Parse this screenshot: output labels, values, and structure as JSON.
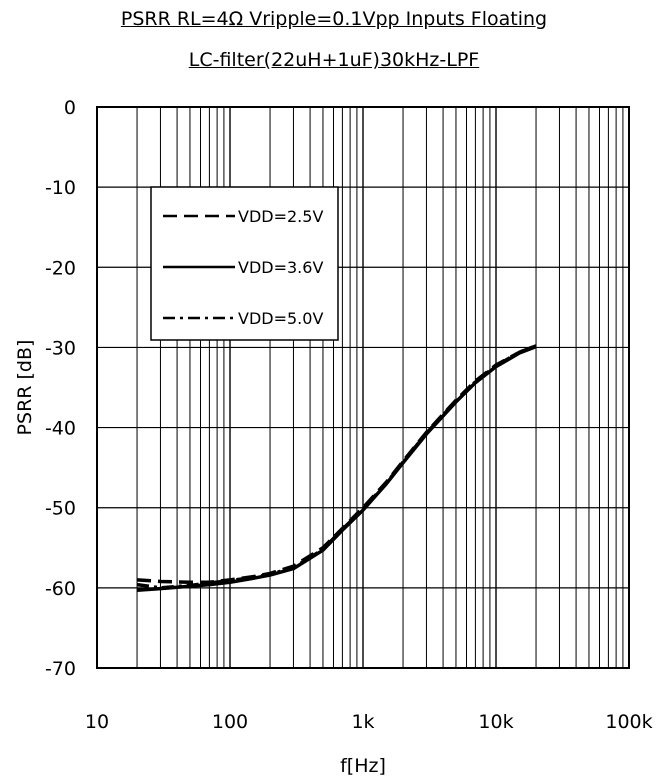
{
  "chart_data": {
    "type": "line",
    "title": "PSRR RL=4Ω Vripple=0.1Vpp Inputs Floating",
    "subtitle": "LC-filter(22uH+1uF)30kHz-LPF",
    "xlabel": "f[Hz]",
    "ylabel": "PSRR [dB]",
    "xscale": "log",
    "xlim": [
      10,
      100000
    ],
    "ylim": [
      -70,
      0
    ],
    "grid": true,
    "legend_position": "top-left",
    "x_tick_labels": [
      "10",
      "100",
      "1k",
      "10k",
      "100k"
    ],
    "y_tick_labels": [
      "0",
      "-10",
      "-20",
      "-30",
      "-40",
      "-50",
      "-60",
      "-70"
    ],
    "x": [
      20,
      30,
      50,
      70,
      100,
      150,
      200,
      300,
      500,
      700,
      1000,
      1500,
      2000,
      3000,
      5000,
      7000,
      10000,
      15000,
      20000
    ],
    "series": [
      {
        "name": "VDD=2.5V",
        "style": "dashed",
        "values": [
          -59.0,
          -59.2,
          -59.3,
          -59.3,
          -59.0,
          -58.6,
          -58.2,
          -57.3,
          -55.0,
          -52.6,
          -50.0,
          -46.8,
          -44.2,
          -40.6,
          -36.6,
          -34.2,
          -32.2,
          -30.6,
          -29.8
        ]
      },
      {
        "name": "VDD=3.6V",
        "style": "solid",
        "values": [
          -60.3,
          -60.1,
          -59.8,
          -59.6,
          -59.3,
          -58.8,
          -58.4,
          -57.6,
          -55.3,
          -52.8,
          -50.3,
          -47.0,
          -44.4,
          -40.8,
          -36.8,
          -34.4,
          -32.4,
          -30.7,
          -29.9
        ]
      },
      {
        "name": "VDD=5.0V",
        "style": "dashdot",
        "values": [
          -59.6,
          -60.0,
          -59.7,
          -59.4,
          -59.1,
          -58.7,
          -58.3,
          -57.5,
          -55.2,
          -52.7,
          -50.2,
          -46.9,
          -44.3,
          -40.7,
          -36.7,
          -34.3,
          -32.3,
          -30.6,
          -29.8
        ]
      }
    ]
  }
}
